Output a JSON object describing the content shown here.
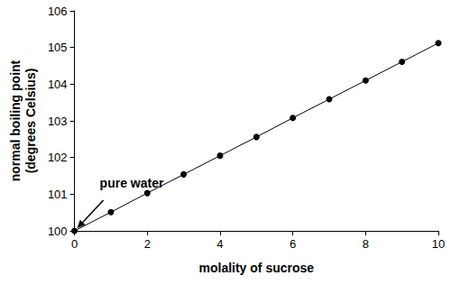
{
  "chart_data": {
    "type": "line",
    "x_label": "molality of sucrose",
    "y_label": "normal boiling point\n(degrees Celsius)",
    "x": [
      0,
      1,
      2,
      3,
      4,
      5,
      6,
      7,
      8,
      9,
      10
    ],
    "values": [
      100.0,
      100.51,
      101.03,
      101.54,
      102.05,
      102.56,
      103.08,
      103.59,
      104.1,
      104.61,
      105.12
    ],
    "color": "#000000",
    "marker": "circle",
    "line_style": "solid",
    "xlim": [
      0,
      10
    ],
    "xticks": [
      0,
      2,
      4,
      6,
      8,
      10
    ],
    "ylim": [
      100,
      106
    ],
    "yticks": [
      100,
      101,
      102,
      103,
      104,
      105,
      106
    ],
    "grid": false,
    "annotations": [
      {
        "text": "pure water",
        "x": 0,
        "y": 100
      }
    ]
  }
}
